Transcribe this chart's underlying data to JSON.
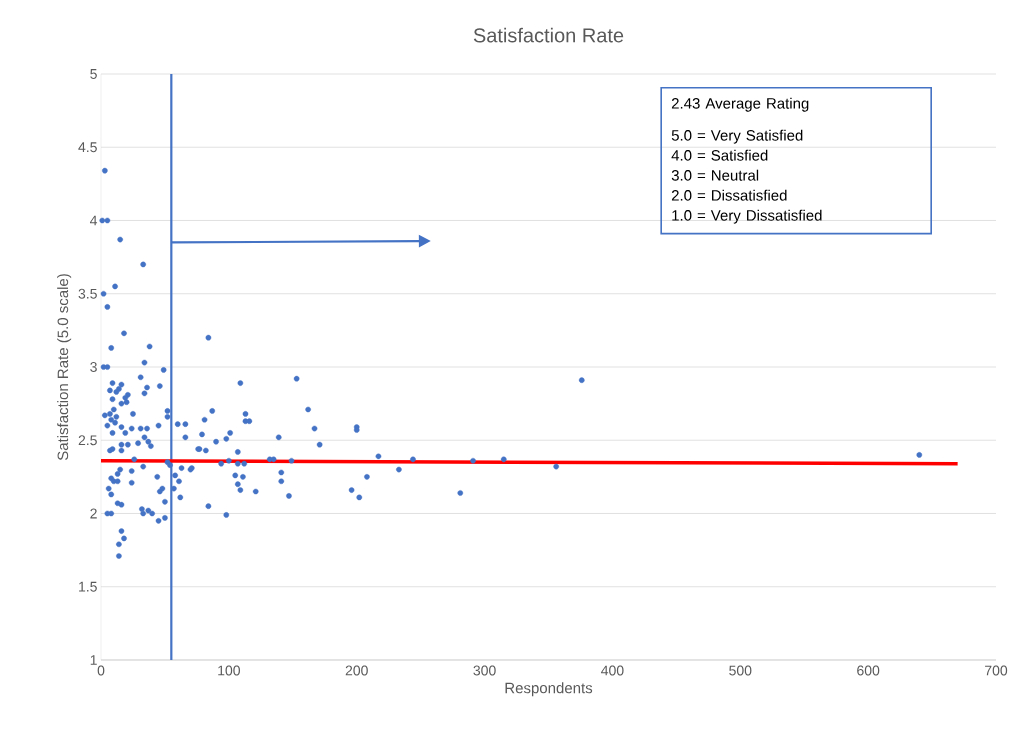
{
  "chart_data": {
    "type": "scatter",
    "title": "Satisfaction Rate",
    "xlabel": "Respondents",
    "ylabel": "Satisfaction Rate (5.0 scale)",
    "xlim": [
      0,
      700
    ],
    "xticks": [
      0,
      100,
      200,
      300,
      400,
      500,
      600,
      700
    ],
    "ylim": [
      1,
      5
    ],
    "yticks": [
      1,
      1.5,
      2,
      2.5,
      3,
      3.5,
      4,
      4.5,
      5
    ],
    "grid": "y",
    "marker": "circle",
    "annotations": [
      "2.43 Average Rating",
      "5.0 = Very Satisfied",
      "4.0 = Satisfied",
      "3.0 = Neutral",
      "2.0 = Dissatisfied",
      "1.0 = Very Dissatisfied"
    ],
    "ref_lines": [
      {
        "axis": "x",
        "value": 55,
        "color": "#4472c4"
      }
    ],
    "series": [
      {
        "color": "#4472c4",
        "x": [
          3,
          1,
          5,
          15,
          33,
          11,
          2,
          5,
          18,
          8,
          38,
          2,
          5,
          34,
          49,
          31,
          9,
          16,
          14,
          12,
          7,
          46,
          36,
          34,
          21,
          19,
          20,
          16,
          9,
          3,
          7,
          10,
          12,
          8,
          5,
          11,
          25,
          52,
          52,
          9,
          16,
          19,
          24,
          31,
          36,
          45,
          60,
          66,
          66,
          76,
          34,
          37,
          39,
          29,
          16,
          21,
          16,
          7,
          9,
          26,
          52,
          33,
          15,
          13,
          24,
          8,
          10,
          13,
          24,
          44,
          48,
          46,
          58,
          61,
          57,
          62,
          63,
          70,
          54,
          6,
          8,
          13,
          16,
          5,
          8,
          32,
          33,
          37,
          40,
          50,
          45,
          50,
          16,
          18,
          14,
          14,
          84,
          109,
          153,
          87,
          81,
          79,
          90,
          113,
          113,
          116,
          101,
          98,
          77,
          82,
          107,
          162,
          167,
          171,
          139,
          200,
          200,
          217,
          244,
          71,
          94,
          100,
          107,
          112,
          132,
          135,
          149,
          105,
          111,
          107,
          109,
          121,
          141,
          141,
          147,
          208,
          196,
          202,
          233,
          84,
          98,
          376,
          281,
          291,
          315,
          356,
          640
        ],
        "values": [
          4.34,
          4.0,
          4.0,
          3.87,
          3.7,
          3.55,
          3.5,
          3.41,
          3.23,
          3.13,
          3.14,
          3.0,
          3.0,
          3.03,
          2.98,
          2.93,
          2.89,
          2.88,
          2.85,
          2.83,
          2.84,
          2.87,
          2.86,
          2.82,
          2.81,
          2.79,
          2.76,
          2.75,
          2.78,
          2.67,
          2.68,
          2.71,
          2.66,
          2.64,
          2.6,
          2.62,
          2.68,
          2.7,
          2.66,
          2.55,
          2.59,
          2.55,
          2.58,
          2.58,
          2.58,
          2.6,
          2.61,
          2.61,
          2.52,
          2.44,
          2.52,
          2.49,
          2.46,
          2.48,
          2.47,
          2.47,
          2.43,
          2.43,
          2.44,
          2.37,
          2.35,
          2.32,
          2.3,
          2.27,
          2.29,
          2.24,
          2.22,
          2.22,
          2.21,
          2.25,
          2.17,
          2.15,
          2.26,
          2.22,
          2.17,
          2.11,
          2.31,
          2.3,
          2.33,
          2.17,
          2.13,
          2.07,
          2.06,
          2.0,
          2.0,
          2.03,
          2.0,
          2.02,
          2.0,
          2.08,
          1.95,
          1.97,
          1.88,
          1.83,
          1.79,
          1.71,
          3.2,
          2.89,
          2.92,
          2.7,
          2.64,
          2.54,
          2.49,
          2.68,
          2.63,
          2.63,
          2.55,
          2.51,
          2.44,
          2.43,
          2.42,
          2.71,
          2.58,
          2.47,
          2.52,
          2.59,
          2.57,
          2.39,
          2.37,
          2.31,
          2.34,
          2.36,
          2.34,
          2.34,
          2.37,
          2.37,
          2.36,
          2.26,
          2.25,
          2.2,
          2.16,
          2.15,
          2.28,
          2.22,
          2.12,
          2.25,
          2.16,
          2.11,
          2.3,
          2.05,
          1.99,
          2.91,
          2.14,
          2.36,
          2.37,
          2.32,
          2.4
        ]
      },
      {
        "type": "line",
        "marker": "none",
        "color": "#ff0000",
        "x": [
          0,
          670
        ],
        "values": [
          2.36,
          2.34
        ]
      }
    ]
  }
}
